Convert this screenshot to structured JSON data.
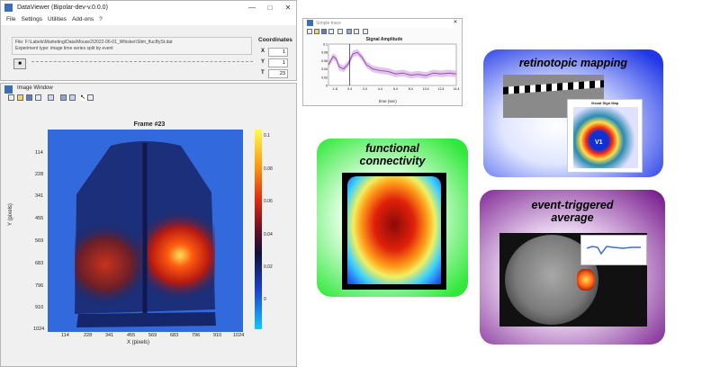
{
  "dataviewer": {
    "title": "DataViewer (Bipolar-dev-v.0.0.0)",
    "menu": [
      "File",
      "Settings",
      "Utilities",
      "Add-ons",
      "?"
    ],
    "file_line": "File: F:\\Labels\\Marketing\\Data\\Mouse2\\2022-06-01_Whisker\\Stim_flucBySt.dat",
    "experiment_line": "Experiment type: image time series split by event",
    "coordinates": {
      "label": "Coordinates",
      "x_label": "X",
      "x_value": "1",
      "y_label": "Y",
      "y_value": "1",
      "t_label": "T",
      "t_value": "23"
    }
  },
  "image_window": {
    "title": "Image Window",
    "frame_title": "Frame #23",
    "y_ticks": [
      "114",
      "228",
      "341",
      "455",
      "569",
      "683",
      "796",
      "910",
      "1024"
    ],
    "x_ticks": [
      "114",
      "228",
      "341",
      "455",
      "569",
      "683",
      "796",
      "910",
      "1024"
    ],
    "ylabel": "Y (pixels)",
    "xlabel": "X (pixels)",
    "colorbar_ticks": [
      "0.1",
      "0.08",
      "0.06",
      "0.04",
      "0.02",
      "0"
    ]
  },
  "signal_window": {
    "title": "Simple trace",
    "plot_title": "Signal Amplitude",
    "y_ticks": [
      "0.1",
      "0.08",
      "0.06",
      "0.04",
      "0.02",
      "0"
    ],
    "x_ticks": [
      "-1.6",
      "0.4",
      "2.4",
      "4.4",
      "6.4",
      "8.4",
      "10.4",
      "12.4",
      "14.4"
    ],
    "xlabel": "time (sec)"
  },
  "chart_data": {
    "type": "line",
    "title": "Signal Amplitude",
    "xlabel": "time (sec)",
    "ylabel": "",
    "xlim": [
      -2.4,
      14.4
    ],
    "ylim": [
      0,
      0.1
    ],
    "series": [
      {
        "values": [
          [
            -2.4,
            0.05
          ],
          [
            -1.8,
            0.07
          ],
          [
            -1.4,
            0.065
          ],
          [
            -1.0,
            0.045
          ],
          [
            -0.4,
            0.04
          ],
          [
            0.2,
            0.052
          ],
          [
            0.8,
            0.076
          ],
          [
            1.4,
            0.08
          ],
          [
            2.0,
            0.068
          ],
          [
            2.6,
            0.05
          ],
          [
            3.4,
            0.04
          ],
          [
            4.4,
            0.036
          ],
          [
            5.4,
            0.034
          ],
          [
            6.4,
            0.028
          ],
          [
            7.4,
            0.03
          ],
          [
            8.4,
            0.025
          ],
          [
            9.4,
            0.027
          ],
          [
            10.4,
            0.024
          ],
          [
            11.4,
            0.03
          ],
          [
            12.4,
            0.028
          ],
          [
            13.4,
            0.03
          ],
          [
            14.4,
            0.028
          ]
        ]
      }
    ]
  },
  "panels": {
    "retinotopic": {
      "title": "retinotopic mapping",
      "map_title": "Visual Sign Map",
      "v1_label": "V1"
    },
    "functional": {
      "title": "functional connectivity"
    },
    "event": {
      "title": "event-triggered average"
    }
  },
  "colors": {
    "retinotopic_bg": "#1a2fe0",
    "functional_bg": "#2ee83a",
    "event_bg": "#7a1f8f",
    "trace": "#9b4fb0"
  }
}
